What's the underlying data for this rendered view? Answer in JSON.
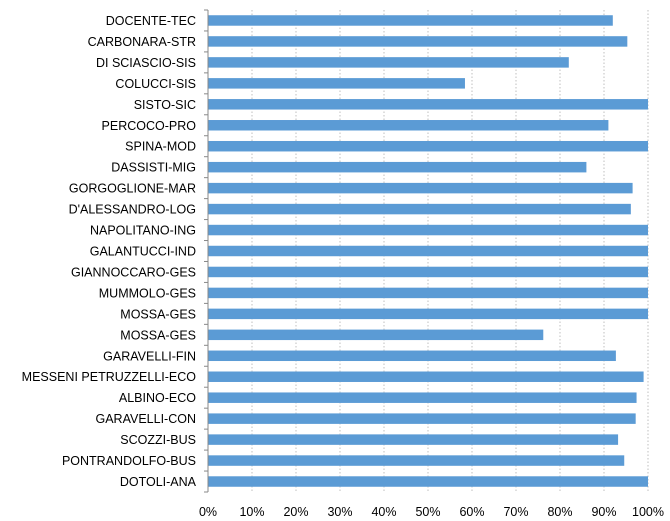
{
  "chart_data": {
    "type": "bar",
    "orientation": "horizontal",
    "title": "",
    "xlabel": "",
    "ylabel": "",
    "xlim": [
      0,
      100
    ],
    "x_ticks": [
      "0%",
      "10%",
      "20%",
      "30%",
      "40%",
      "50%",
      "60%",
      "70%",
      "80%",
      "90%",
      "100%"
    ],
    "grid": true,
    "legend": "none",
    "bar_color": "#5b9bd5",
    "categories": [
      "DOCENTE-TEC",
      "CARBONARA-STR",
      "DI SCIASCIO-SIS",
      "COLUCCI-SIS",
      "SISTO-SIC",
      "PERCOCO-PRO",
      "SPINA-MOD",
      "DASSISTI-MIG",
      "GORGOGLIONE-MAR",
      "D'ALESSANDRO-LOG",
      "NAPOLITANO-ING",
      "GALANTUCCI-IND",
      "GIANNOCCARO-GES",
      "MUMMOLO-GES",
      "MOSSA-GES",
      "MOSSA-GES",
      "GARAVELLI-FIN",
      "MESSENI PETRUZZELLI-ECO",
      "ALBINO-ECO",
      "GARAVELLI-CON",
      "SCOZZI-BUS",
      "PONTRANDOLFO-BUS",
      "DOTOLI-ANA"
    ],
    "values": [
      92,
      95.3,
      82,
      58.4,
      100,
      91,
      100,
      86,
      96.5,
      96.1,
      100,
      100,
      100,
      100,
      100,
      76.2,
      92.7,
      99,
      97.4,
      97.2,
      93.2,
      94.6,
      100
    ]
  }
}
